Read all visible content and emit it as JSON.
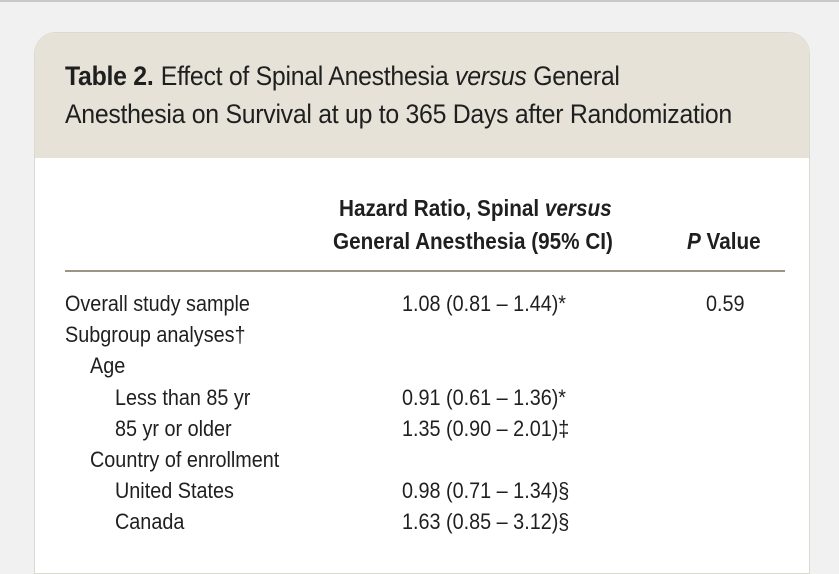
{
  "table": {
    "label": "Table 2.",
    "title_part1": "Effect of Spinal Anesthesia ",
    "title_italic": "versus",
    "title_part2": " General",
    "title_line2": "Anesthesia on Survival at up to 365 Days after Randomization",
    "col_hr_line1_a": "Hazard Ratio, Spinal ",
    "col_hr_line1_italic": "versus",
    "col_hr_line2": "General Anesthesia (95% CI)",
    "col_p_italic": "P",
    "col_p_rest": " Value",
    "rows": [
      {
        "label": "Overall study sample",
        "value": "1.08 (0.81 – 1.44)*",
        "p": "0.59"
      },
      {
        "label": "Subgroup analyses†",
        "value": "",
        "p": ""
      },
      {
        "label": "Age",
        "value": "",
        "p": ""
      },
      {
        "label": "Less than 85 yr",
        "value": "0.91 (0.61 – 1.36)*",
        "p": ""
      },
      {
        "label": "85 yr or older",
        "value": "1.35 (0.90 – 2.01)‡",
        "p": ""
      },
      {
        "label": "Country of enrollment",
        "value": "",
        "p": ""
      },
      {
        "label": "United States",
        "value": "0.98 (0.71 – 1.34)§",
        "p": ""
      },
      {
        "label": "Canada",
        "value": "1.63 (0.85 – 3.12)§",
        "p": ""
      }
    ]
  }
}
